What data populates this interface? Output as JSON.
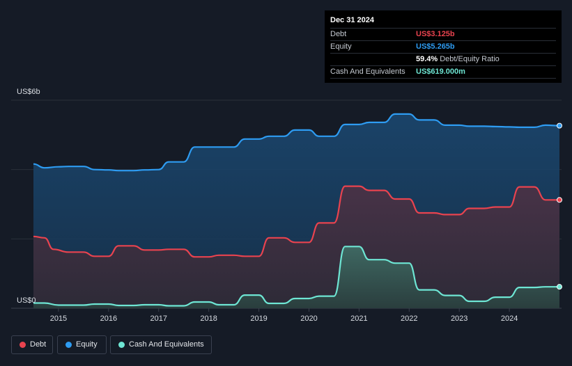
{
  "tooltip": {
    "date": "Dec 31 2024",
    "rows": [
      {
        "label": "Debt",
        "value": "US$3.125b",
        "color": "#e9434f"
      },
      {
        "label": "Equity",
        "value": "US$5.265b",
        "color": "#2e9cf2"
      },
      {
        "label": "",
        "value": "59.4%",
        "suffix": "Debt/Equity Ratio",
        "color": "#ffffff"
      },
      {
        "label": "Cash And Equivalents",
        "value": "US$619.000m",
        "color": "#6ee6d4"
      }
    ]
  },
  "legend": [
    {
      "label": "Debt",
      "color": "#e9434f"
    },
    {
      "label": "Equity",
      "color": "#2e9cf2"
    },
    {
      "label": "Cash And Equivalents",
      "color": "#6ee6d4"
    }
  ],
  "chart_data": {
    "type": "area",
    "y_top_label": "US$6b",
    "y_bottom_label": "US$0",
    "ylim": [
      0,
      6
    ],
    "xlim": [
      2014.5,
      2025.0
    ],
    "x_ticks": [
      "2015",
      "2016",
      "2017",
      "2018",
      "2019",
      "2020",
      "2021",
      "2022",
      "2023",
      "2024"
    ],
    "x_tick_values": [
      2015,
      2016,
      2017,
      2018,
      2019,
      2020,
      2021,
      2022,
      2023,
      2024
    ],
    "grid": true,
    "legend_position": "bottom-left",
    "series": [
      {
        "name": "Equity",
        "color": "#2e9cf2",
        "points": [
          [
            2014.5,
            4.16
          ],
          [
            2014.72,
            4.05
          ],
          [
            2015.0,
            4.08
          ],
          [
            2015.2,
            4.09
          ],
          [
            2015.5,
            4.09
          ],
          [
            2015.72,
            4.0
          ],
          [
            2016.0,
            3.99
          ],
          [
            2016.2,
            3.97
          ],
          [
            2016.5,
            3.97
          ],
          [
            2016.72,
            3.99
          ],
          [
            2017.0,
            4.0
          ],
          [
            2017.2,
            4.22
          ],
          [
            2017.5,
            4.22
          ],
          [
            2017.72,
            4.65
          ],
          [
            2018.0,
            4.65
          ],
          [
            2018.2,
            4.65
          ],
          [
            2018.5,
            4.65
          ],
          [
            2018.72,
            4.88
          ],
          [
            2019.0,
            4.88
          ],
          [
            2019.2,
            4.96
          ],
          [
            2019.5,
            4.96
          ],
          [
            2019.72,
            5.14
          ],
          [
            2020.0,
            5.14
          ],
          [
            2020.2,
            4.96
          ],
          [
            2020.5,
            4.96
          ],
          [
            2020.72,
            5.3
          ],
          [
            2021.0,
            5.3
          ],
          [
            2021.2,
            5.36
          ],
          [
            2021.5,
            5.36
          ],
          [
            2021.72,
            5.6
          ],
          [
            2022.0,
            5.6
          ],
          [
            2022.2,
            5.43
          ],
          [
            2022.5,
            5.43
          ],
          [
            2022.72,
            5.28
          ],
          [
            2023.0,
            5.28
          ],
          [
            2023.2,
            5.25
          ],
          [
            2023.5,
            5.25
          ],
          [
            2023.72,
            5.24
          ],
          [
            2024.0,
            5.23
          ],
          [
            2024.2,
            5.22
          ],
          [
            2024.5,
            5.22
          ],
          [
            2024.72,
            5.28
          ],
          [
            2025.0,
            5.265
          ]
        ]
      },
      {
        "name": "Debt",
        "color": "#e9434f",
        "points": [
          [
            2014.5,
            2.07
          ],
          [
            2014.72,
            2.03
          ],
          [
            2014.9,
            1.7
          ],
          [
            2015.2,
            1.62
          ],
          [
            2015.5,
            1.62
          ],
          [
            2015.72,
            1.5
          ],
          [
            2016.0,
            1.5
          ],
          [
            2016.2,
            1.8
          ],
          [
            2016.5,
            1.8
          ],
          [
            2016.72,
            1.68
          ],
          [
            2017.0,
            1.68
          ],
          [
            2017.2,
            1.7
          ],
          [
            2017.5,
            1.7
          ],
          [
            2017.72,
            1.48
          ],
          [
            2018.0,
            1.48
          ],
          [
            2018.2,
            1.53
          ],
          [
            2018.5,
            1.53
          ],
          [
            2018.72,
            1.5
          ],
          [
            2019.0,
            1.5
          ],
          [
            2019.2,
            2.03
          ],
          [
            2019.5,
            2.03
          ],
          [
            2019.72,
            1.9
          ],
          [
            2020.0,
            1.9
          ],
          [
            2020.2,
            2.46
          ],
          [
            2020.5,
            2.46
          ],
          [
            2020.72,
            3.52
          ],
          [
            2021.0,
            3.52
          ],
          [
            2021.2,
            3.4
          ],
          [
            2021.5,
            3.4
          ],
          [
            2021.72,
            3.15
          ],
          [
            2022.0,
            3.15
          ],
          [
            2022.2,
            2.75
          ],
          [
            2022.5,
            2.75
          ],
          [
            2022.72,
            2.7
          ],
          [
            2023.0,
            2.7
          ],
          [
            2023.2,
            2.88
          ],
          [
            2023.5,
            2.88
          ],
          [
            2023.72,
            2.92
          ],
          [
            2024.0,
            2.92
          ],
          [
            2024.2,
            3.5
          ],
          [
            2024.5,
            3.5
          ],
          [
            2024.72,
            3.125
          ],
          [
            2025.0,
            3.125
          ]
        ]
      },
      {
        "name": "Cash And Equivalents",
        "color": "#6ee6d4",
        "points": [
          [
            2014.5,
            0.15
          ],
          [
            2014.72,
            0.15
          ],
          [
            2015.0,
            0.09
          ],
          [
            2015.2,
            0.09
          ],
          [
            2015.5,
            0.09
          ],
          [
            2015.72,
            0.12
          ],
          [
            2016.0,
            0.12
          ],
          [
            2016.2,
            0.08
          ],
          [
            2016.5,
            0.08
          ],
          [
            2016.72,
            0.1
          ],
          [
            2017.0,
            0.1
          ],
          [
            2017.2,
            0.07
          ],
          [
            2017.5,
            0.07
          ],
          [
            2017.72,
            0.18
          ],
          [
            2018.0,
            0.18
          ],
          [
            2018.2,
            0.1
          ],
          [
            2018.5,
            0.1
          ],
          [
            2018.72,
            0.38
          ],
          [
            2019.0,
            0.38
          ],
          [
            2019.2,
            0.14
          ],
          [
            2019.5,
            0.14
          ],
          [
            2019.72,
            0.28
          ],
          [
            2020.0,
            0.28
          ],
          [
            2020.2,
            0.35
          ],
          [
            2020.5,
            0.35
          ],
          [
            2020.72,
            1.78
          ],
          [
            2021.0,
            1.78
          ],
          [
            2021.2,
            1.4
          ],
          [
            2021.5,
            1.4
          ],
          [
            2021.72,
            1.3
          ],
          [
            2022.0,
            1.3
          ],
          [
            2022.2,
            0.53
          ],
          [
            2022.5,
            0.53
          ],
          [
            2022.72,
            0.37
          ],
          [
            2023.0,
            0.37
          ],
          [
            2023.2,
            0.2
          ],
          [
            2023.5,
            0.2
          ],
          [
            2023.72,
            0.32
          ],
          [
            2024.0,
            0.32
          ],
          [
            2024.2,
            0.6
          ],
          [
            2024.5,
            0.6
          ],
          [
            2024.72,
            0.619
          ],
          [
            2025.0,
            0.619
          ]
        ]
      }
    ]
  }
}
